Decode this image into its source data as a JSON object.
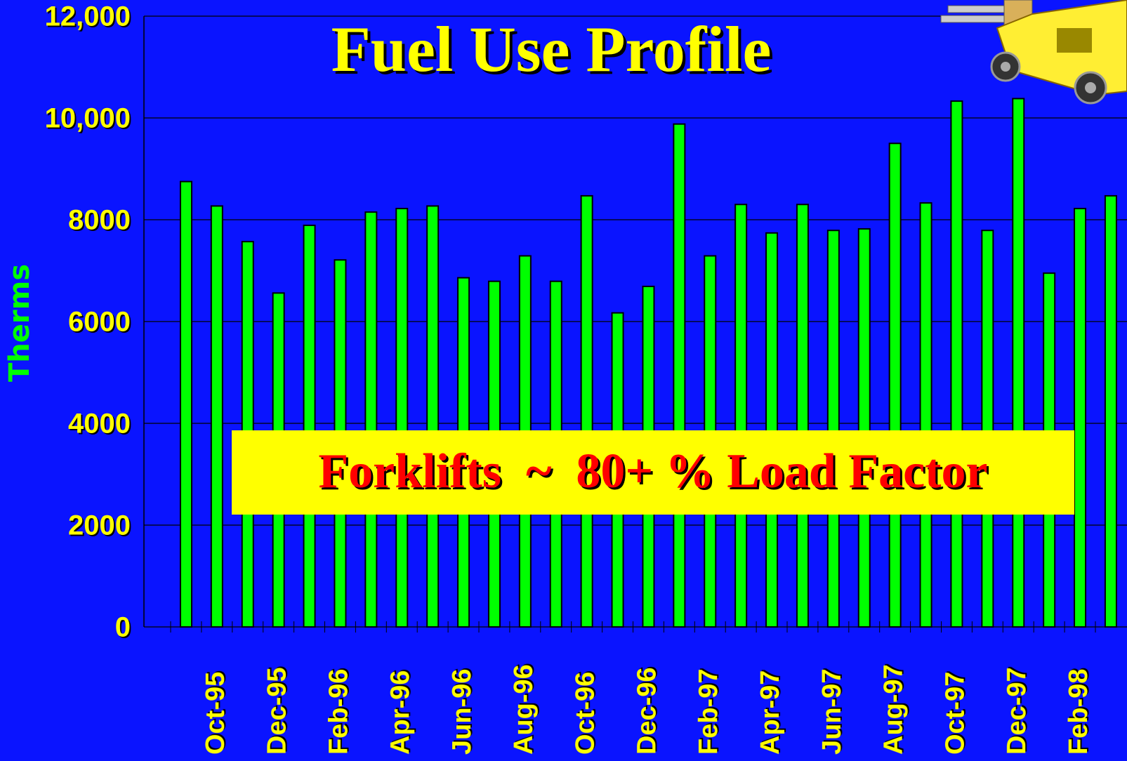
{
  "chart_data": {
    "type": "bar",
    "title": "Fuel Use Profile",
    "annotation": "Forklifts  ~  80+ % Load Factor",
    "y_label": "Therms",
    "categories": [
      null,
      "Oct-95",
      null,
      "Dec-95",
      null,
      "Feb-96",
      null,
      "Apr-96",
      null,
      "Jun-96",
      null,
      "Aug-96",
      null,
      "Oct-96",
      null,
      "Dec-96",
      null,
      "Feb-97",
      null,
      "Apr-97",
      null,
      "Jun-97",
      null,
      "Aug-97",
      null,
      "Oct-97",
      null,
      "Dec-97",
      null,
      "Feb-98",
      null
    ],
    "values": [
      8750,
      8270,
      7570,
      6560,
      7890,
      7210,
      8150,
      8220,
      8270,
      6860,
      6790,
      7290,
      6790,
      8470,
      6170,
      6690,
      9880,
      7290,
      8300,
      7740,
      8300,
      7790,
      7820,
      9500,
      8330,
      10330,
      7790,
      10380,
      6950,
      8220,
      8470
    ],
    "color": "#00ff00",
    "ylim": [
      0,
      12000
    ],
    "yticks": [
      0,
      2000,
      4000,
      6000,
      8000,
      {
        "value": 10000,
        "label": "10,000"
      },
      {
        "value": 12000,
        "label": "12,000"
      }
    ],
    "grid": true
  }
}
